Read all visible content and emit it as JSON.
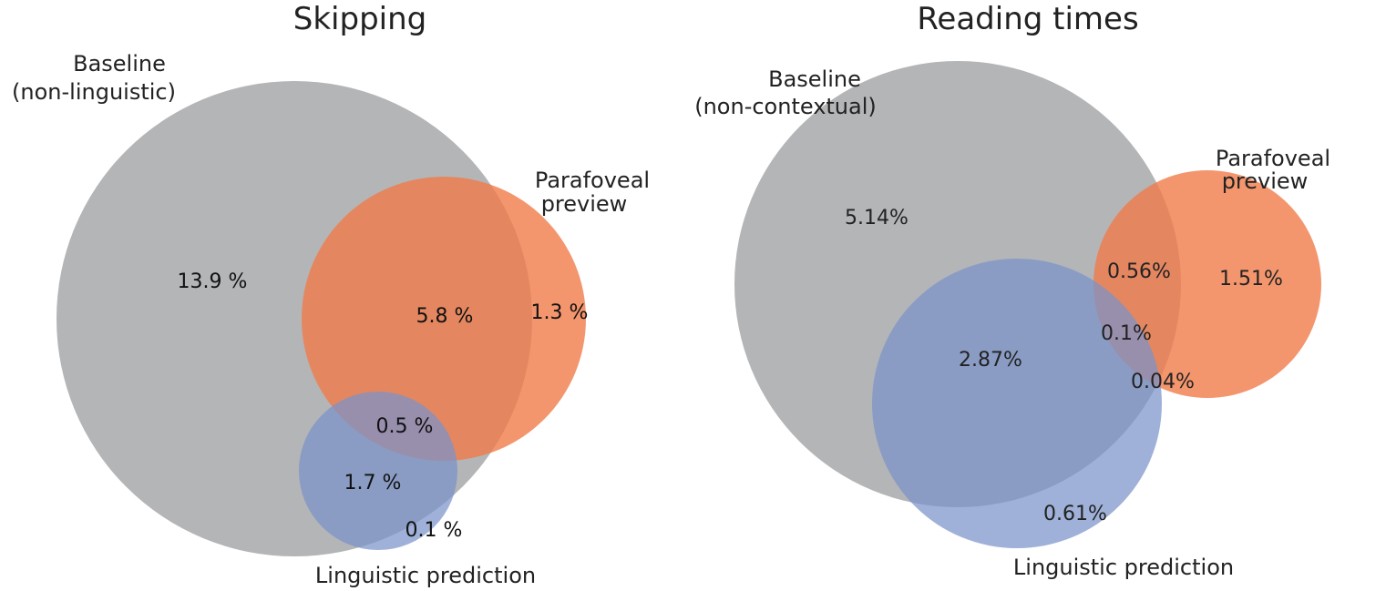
{
  "colors": {
    "baseline": "#a7a8aa",
    "parafoveal": "#f07c4a",
    "linguistic": "#7a93c9",
    "text_dark": "#111111",
    "text_mid": "#222222"
  },
  "panels": [
    {
      "title": "Skipping",
      "labels": {
        "baseline_line1": "Baseline",
        "baseline_line2": "(non-linguistic)",
        "parafoveal_line1": "Parafoveal",
        "parafoveal_line2": "preview",
        "linguistic": "Linguistic prediction"
      },
      "regions": {
        "baseline_only": "13.9 %",
        "baseline_parafoveal": "5.8 %",
        "parafoveal_only": "1.3 %",
        "all_three": "0.5 %",
        "baseline_linguistic": "1.7 %",
        "linguistic_only": "0.1 %"
      }
    },
    {
      "title": "Reading times",
      "labels": {
        "baseline_line1": "Baseline",
        "baseline_line2": "(non-contextual)",
        "parafoveal_line1": "Parafoveal",
        "parafoveal_line2": "preview",
        "linguistic": "Linguistic prediction"
      },
      "regions": {
        "baseline_only": "5.14%",
        "baseline_parafoveal": "0.56%",
        "parafoveal_only": "1.51%",
        "all_three": "0.1%",
        "baseline_linguistic": "2.87%",
        "parafoveal_linguistic": "0.04%",
        "linguistic_only": "0.61%"
      }
    }
  ]
}
